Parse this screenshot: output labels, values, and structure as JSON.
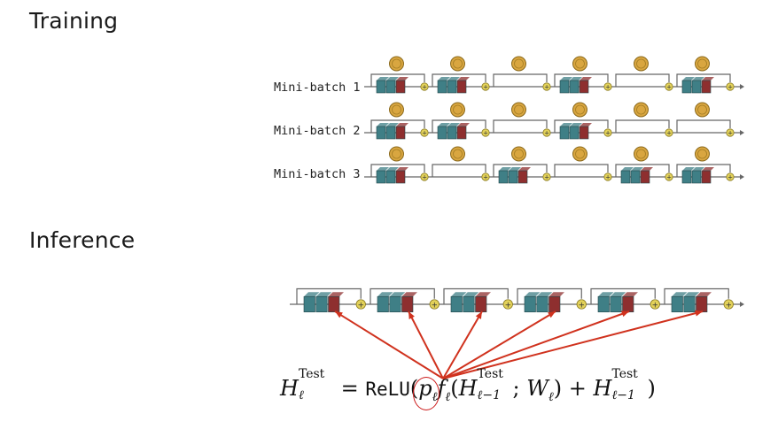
{
  "training": {
    "title": "Training"
  },
  "inference": {
    "title": "Inference"
  },
  "batches": [
    {
      "label": "Mini-batch 1",
      "active": [
        true,
        true,
        false,
        true,
        false,
        true
      ]
    },
    {
      "label": "Mini-batch 2",
      "active": [
        true,
        true,
        false,
        true,
        false,
        false
      ]
    },
    {
      "label": "Mini-batch 3",
      "active": [
        true,
        false,
        true,
        false,
        true,
        true
      ]
    }
  ],
  "inference_blocks": [
    true,
    true,
    true,
    true,
    true,
    true
  ],
  "formula": {
    "H": "H",
    "ell": "ℓ",
    "test": "Test",
    "eq": " = ",
    "relu": "ReLU",
    "open": "(",
    "p": "p",
    "f": "f",
    "paren_open": "(",
    "sep": "; ",
    "W": "W",
    "close1": ") + ",
    "ell_minus_1": "ℓ−1",
    "close2": ")"
  },
  "colors": {
    "teal": "#3f7f86",
    "red": "#8e2f2f",
    "coin": "#d9a640",
    "plus": "#e3d25a",
    "arrow": "#d0321e",
    "wire": "#666666"
  }
}
